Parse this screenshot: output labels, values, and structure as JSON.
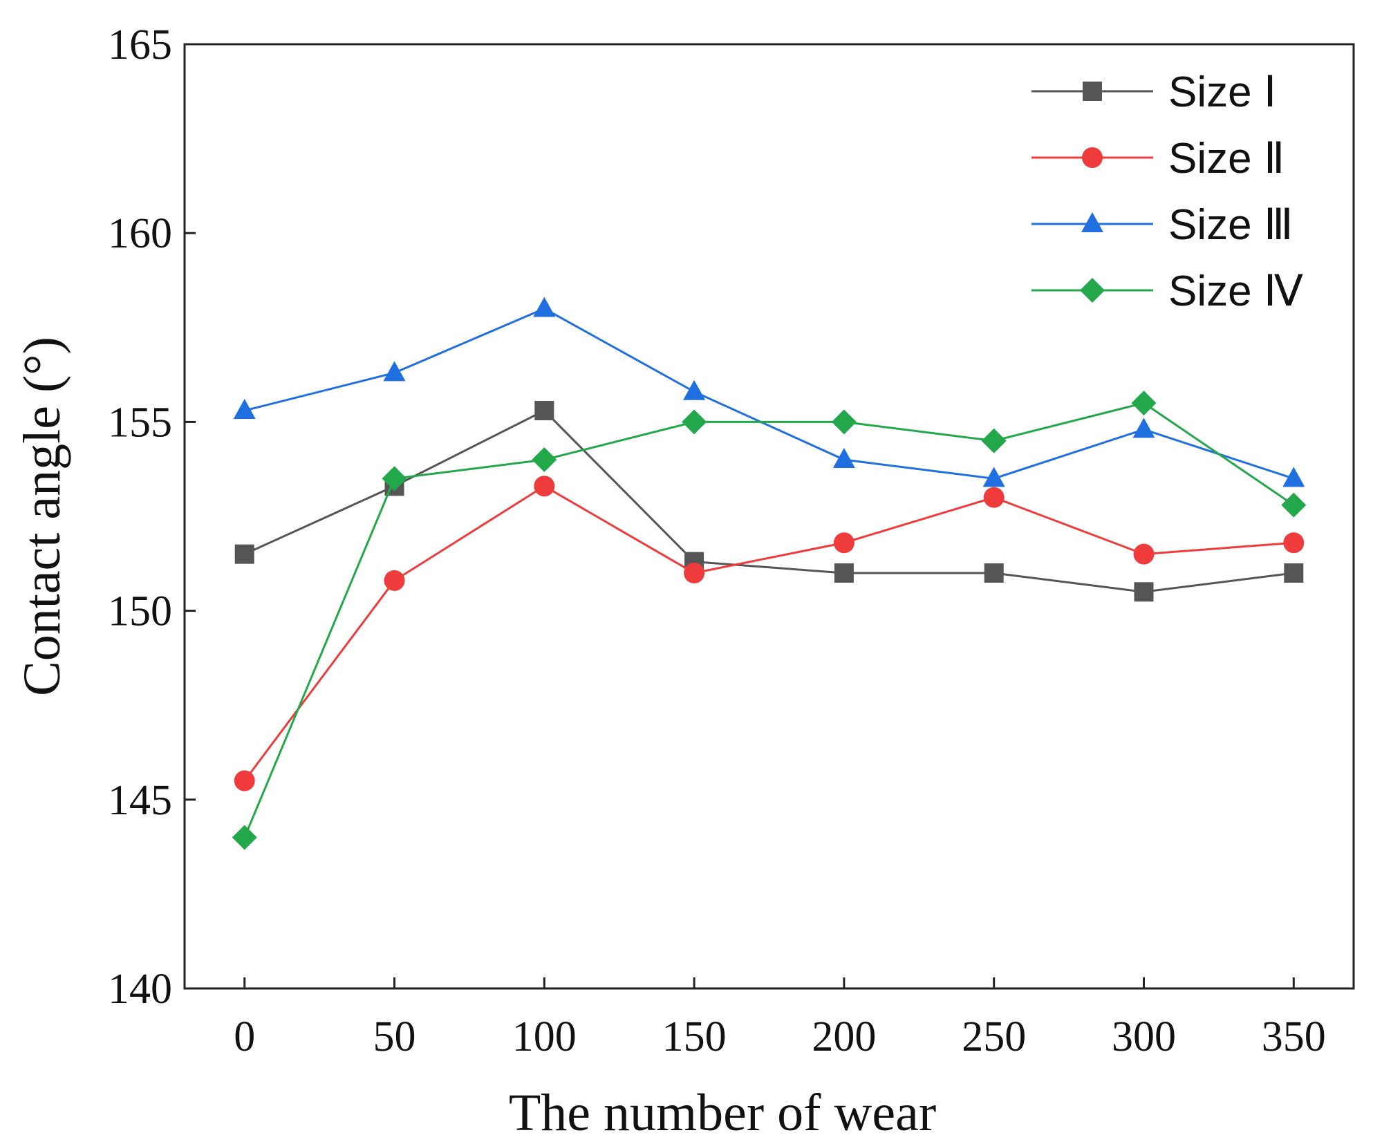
{
  "chart_data": {
    "type": "line",
    "title": "",
    "xlabel": "The number of wear",
    "ylabel": "Contact angle (°)",
    "x": [
      0,
      50,
      100,
      150,
      200,
      250,
      300,
      350
    ],
    "xlim": [
      -20,
      370
    ],
    "ylim": [
      140,
      165
    ],
    "xticks": [
      0,
      50,
      100,
      150,
      200,
      250,
      300,
      350
    ],
    "yticks": [
      140,
      145,
      150,
      155,
      160,
      165
    ],
    "grid": false,
    "legend_position": "top-right",
    "series": [
      {
        "name": "Size  Ⅰ",
        "color": "#555555",
        "marker": "square",
        "values": [
          151.5,
          153.3,
          155.3,
          151.3,
          151.0,
          151.0,
          150.5,
          151.0
        ]
      },
      {
        "name": "Size  Ⅱ",
        "color": "#ef3b3b",
        "marker": "circle",
        "values": [
          145.5,
          150.8,
          153.3,
          151.0,
          151.8,
          153.0,
          151.5,
          151.8
        ]
      },
      {
        "name": "Size Ⅲ",
        "color": "#1f6fe0",
        "marker": "triangle",
        "values": [
          155.3,
          156.3,
          158.0,
          155.8,
          154.0,
          153.5,
          154.8,
          153.5
        ]
      },
      {
        "name": "Size Ⅳ",
        "color": "#22a84a",
        "marker": "diamond",
        "values": [
          144.0,
          153.5,
          154.0,
          155.0,
          155.0,
          154.5,
          155.5,
          152.8
        ]
      }
    ]
  }
}
